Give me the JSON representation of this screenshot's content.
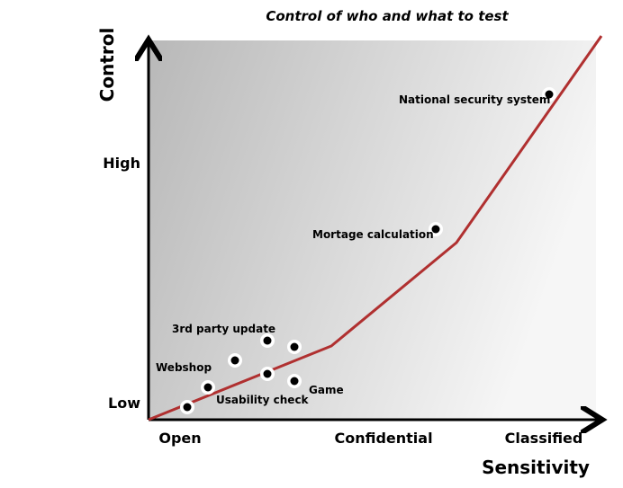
{
  "title": "Control of who and what to test",
  "y_axis": {
    "label": "Control",
    "ticks": [
      "High",
      "Low"
    ]
  },
  "x_axis": {
    "label": "Sensitivity",
    "ticks": [
      "Open",
      "Confidential",
      "Classified"
    ]
  },
  "annotations": [
    "National security system",
    "Mortage calculation",
    "3rd party update",
    "Webshop",
    "Usability check",
    "Game"
  ]
}
